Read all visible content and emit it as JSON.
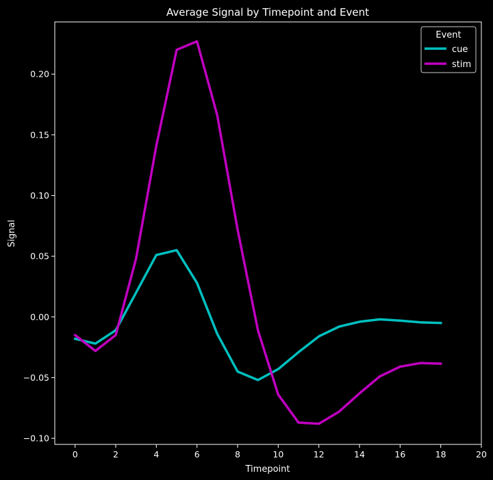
{
  "chart_data": {
    "type": "line",
    "title": "Average Signal by Timepoint and Event",
    "xlabel": "Timepoint",
    "ylabel": "Signal",
    "xlim": [
      -1,
      20
    ],
    "ylim": [
      -0.105,
      0.243
    ],
    "xticks": [
      0,
      2,
      4,
      6,
      8,
      10,
      12,
      14,
      16,
      18,
      20
    ],
    "yticks": [
      -0.1,
      -0.05,
      0.0,
      0.05,
      0.1,
      0.15,
      0.2
    ],
    "ytick_labels": [
      "−0.10",
      "−0.05",
      "0.00",
      "0.05",
      "0.10",
      "0.15",
      "0.20"
    ],
    "grid": false,
    "legend": {
      "title": "Event",
      "position": "top-right"
    },
    "x": [
      0,
      1,
      2,
      3,
      4,
      5,
      6,
      7,
      8,
      9,
      10,
      11,
      12,
      13,
      14,
      15,
      16,
      17,
      18
    ],
    "series": [
      {
        "name": "cue",
        "color": "#00bfbf",
        "values": [
          -0.018,
          -0.022,
          -0.011,
          0.02,
          0.051,
          0.055,
          0.028,
          -0.014,
          -0.045,
          -0.052,
          -0.043,
          -0.029,
          -0.016,
          -0.008,
          -0.004,
          -0.002,
          -0.003,
          -0.0045,
          -0.005
        ]
      },
      {
        "name": "stim",
        "color": "#bf00bf",
        "values": [
          -0.015,
          -0.028,
          -0.015,
          0.048,
          0.141,
          0.22,
          0.227,
          0.166,
          0.072,
          -0.011,
          -0.064,
          -0.087,
          -0.088,
          -0.078,
          -0.063,
          -0.049,
          -0.041,
          -0.038,
          -0.0385
        ]
      }
    ]
  }
}
